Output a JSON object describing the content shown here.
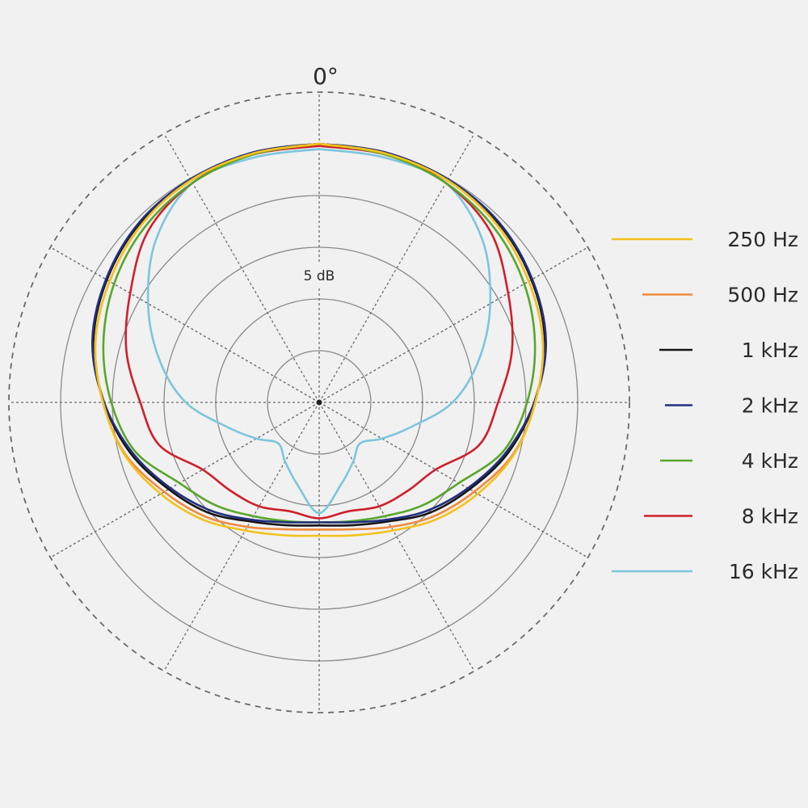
{
  "chart_data": {
    "type": "polar-line",
    "top_angle_label": "0°",
    "ring_label": "5 dB",
    "radial_range_db": [
      -25,
      5
    ],
    "ring_step_db": 5,
    "spoke_step_deg": 30,
    "grid": true,
    "legend_position": "right",
    "symmetric": true,
    "angles_deg": [
      0,
      15,
      30,
      45,
      60,
      75,
      90,
      105,
      120,
      135,
      150,
      165,
      180
    ],
    "series": [
      {
        "name": "250 Hz",
        "color": "#f2c21b",
        "db": [
          0,
          -0.1,
          -0.2,
          -0.7,
          -1.6,
          -2.6,
          -4.1,
          -5.5,
          -7.3,
          -9.0,
          -10.7,
          -11.7,
          -12.1
        ]
      },
      {
        "name": "500 Hz",
        "color": "#ef8a3e",
        "db": [
          0,
          -0.1,
          -0.2,
          -0.7,
          -1.6,
          -2.6,
          -4.1,
          -5.6,
          -7.7,
          -9.4,
          -11.1,
          -12.3,
          -12.7
        ]
      },
      {
        "name": "1 kHz",
        "color": "#141414",
        "db": [
          0,
          0,
          -0.2,
          -0.5,
          -1.3,
          -2.4,
          -4.2,
          -6.1,
          -8.2,
          -9.9,
          -11.7,
          -12.7,
          -13.1
        ]
      },
      {
        "name": "2 kHz",
        "color": "#22307f",
        "db": [
          0,
          0,
          -0.1,
          -0.4,
          -1.2,
          -2.3,
          -4.2,
          -6.3,
          -8.4,
          -10.2,
          -11.9,
          -13.0,
          -13.4
        ]
      },
      {
        "name": "4 kHz",
        "color": "#5aa62c",
        "db": [
          0,
          -0.2,
          -0.5,
          -1.1,
          -2.1,
          -3.4,
          -4.9,
          -6.6,
          -9.4,
          -10.9,
          -12.3,
          -13.1,
          -13.4
        ]
      },
      {
        "name": "8 kHz",
        "color": "#cf1f2b",
        "db": [
          -0.2,
          -0.2,
          -0.5,
          -1.6,
          -3.9,
          -5.7,
          -7.7,
          -9.0,
          -12.0,
          -12.9,
          -13.4,
          -14.1,
          -13.8
        ]
      },
      {
        "name": "16 kHz",
        "color": "#7cc6dd",
        "db": [
          -0.5,
          -0.5,
          -0.5,
          -2.7,
          -5.9,
          -9.0,
          -12.1,
          -15.8,
          -18.0,
          -19.4,
          -18.4,
          -16.8,
          -14.3
        ]
      }
    ]
  }
}
